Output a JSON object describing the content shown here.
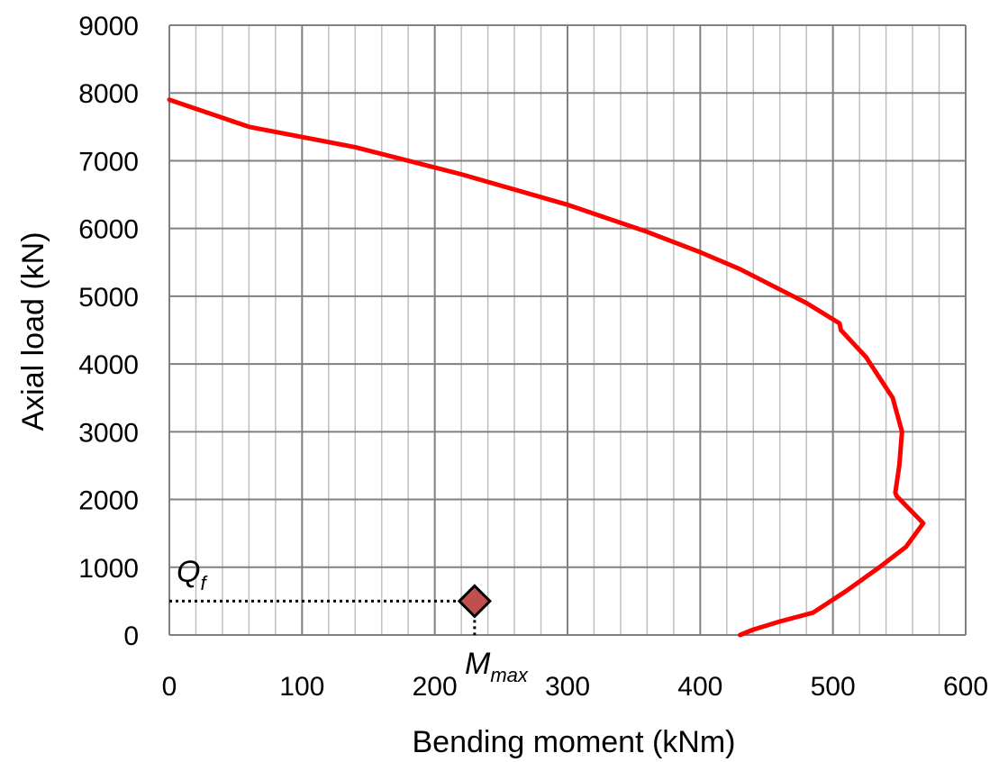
{
  "chart_data": {
    "type": "line",
    "xlabel": "Bending moment (kNm)",
    "ylabel": "Axial load (kN)",
    "xlim": [
      0,
      600
    ],
    "ylim": [
      0,
      9000
    ],
    "x_ticks": [
      0,
      100,
      200,
      300,
      400,
      500,
      600
    ],
    "y_ticks": [
      0,
      1000,
      2000,
      3000,
      4000,
      5000,
      6000,
      7000,
      8000,
      9000
    ],
    "grid": {
      "major_x": 100,
      "minor_x": 20,
      "major_y": 1000
    },
    "colors": {
      "curve": "#ff0000",
      "marker": "#c0504d",
      "grid_major": "#808080",
      "grid_minor": "#bfbfbf"
    },
    "series": [
      {
        "x": [
          0,
          60,
          140,
          220,
          300,
          360,
          400,
          430,
          480,
          505,
          506,
          525,
          545,
          552,
          550,
          547,
          548,
          568,
          555,
          535,
          510,
          485,
          460,
          440,
          430
        ],
        "y": [
          7900,
          7500,
          7200,
          6800,
          6350,
          5950,
          5650,
          5400,
          4900,
          4600,
          4500,
          4100,
          3500,
          3000,
          2500,
          2100,
          2050,
          1650,
          1300,
          1000,
          650,
          330,
          200,
          80,
          0
        ]
      }
    ],
    "point": {
      "x": 230,
      "y": 500
    },
    "annotations": {
      "q_label": "Q",
      "q_sub": "f",
      "m_label": "M",
      "m_sub": "max"
    }
  }
}
